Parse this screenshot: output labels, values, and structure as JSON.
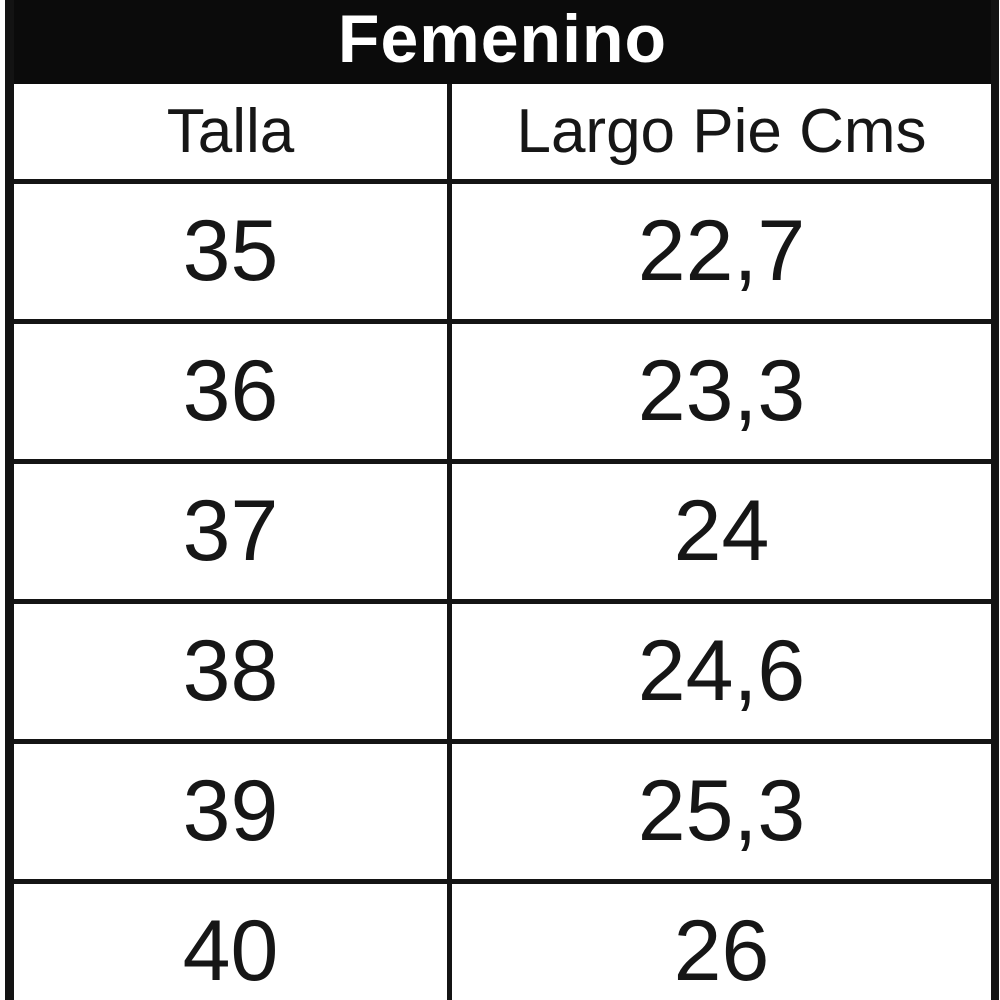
{
  "table": {
    "title": "Femenino",
    "columns": [
      {
        "label": "Talla"
      },
      {
        "label": "Largo Pie Cms"
      }
    ],
    "rows": [
      {
        "talla": "35",
        "largo": "22,7"
      },
      {
        "talla": "36",
        "largo": "23,3"
      },
      {
        "talla": "37",
        "largo": "24"
      },
      {
        "talla": "38",
        "largo": "24,6"
      },
      {
        "talla": "39",
        "largo": "25,3"
      },
      {
        "talla": "40",
        "largo": "26"
      }
    ]
  },
  "colors": {
    "title_bg": "#0b0b0b",
    "title_text": "#ffffff",
    "border": "#141414",
    "cell_bg": "#ffffff",
    "cell_text": "#161616"
  }
}
